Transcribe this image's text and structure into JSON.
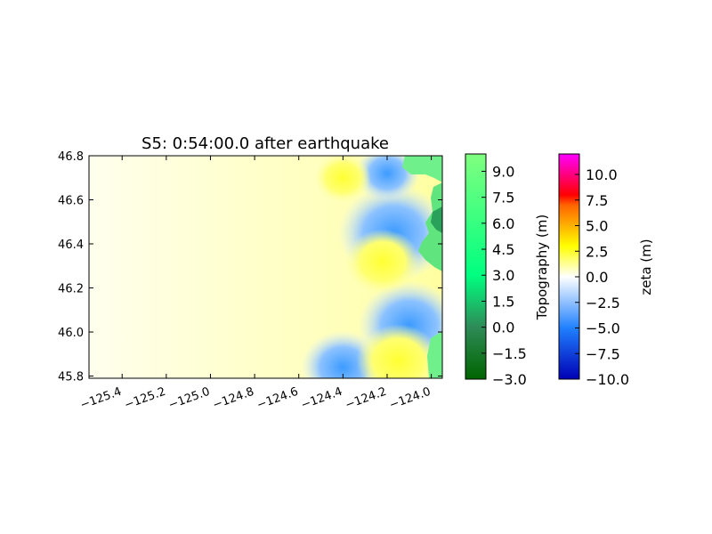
{
  "chart_data": {
    "type": "heatmap",
    "title": "S5: 0:54:00.0 after earthquake",
    "xlabel": "",
    "ylabel": "",
    "xlim": [
      -125.55,
      -123.95
    ],
    "ylim": [
      45.79,
      46.8
    ],
    "x_ticks": [
      -125.4,
      -125.2,
      -125.0,
      -124.8,
      -124.6,
      -124.4,
      -124.2,
      -124.0
    ],
    "x_tick_labels": [
      "−125.4",
      "−125.2",
      "−125.0",
      "−124.8",
      "−124.6",
      "−124.4",
      "−124.2",
      "−124.0"
    ],
    "y_ticks": [
      45.8,
      46.0,
      46.2,
      46.4,
      46.6,
      46.8
    ],
    "y_tick_labels": [
      "45.8",
      "46.0",
      "46.2",
      "46.4",
      "46.6",
      "46.8"
    ],
    "grid": false,
    "surface_features": [
      {
        "kind": "negative",
        "lon": -124.17,
        "lat": 46.45,
        "value": -4.5
      },
      {
        "kind": "negative",
        "lon": -124.1,
        "lat": 46.03,
        "value": -4.0
      },
      {
        "kind": "negative",
        "lon": -124.4,
        "lat": 45.84,
        "value": -3.0
      },
      {
        "kind": "negative",
        "lon": -124.2,
        "lat": 46.72,
        "value": -2.0
      },
      {
        "kind": "positive",
        "lon": -124.15,
        "lat": 45.87,
        "value": 3.0
      },
      {
        "kind": "positive",
        "lon": -124.22,
        "lat": 46.32,
        "value": 2.5
      },
      {
        "kind": "positive",
        "lon": -124.4,
        "lat": 46.7,
        "value": 1.5
      }
    ],
    "colorbars": [
      {
        "label": "Topography (m)",
        "ticks": [
          -3.0,
          -1.5,
          0.0,
          1.5,
          3.0,
          4.5,
          6.0,
          7.5,
          9.0
        ],
        "tick_labels": [
          "−3.0",
          "−1.5",
          "0.0",
          "1.5",
          "3.0",
          "4.5",
          "6.0",
          "7.5",
          "9.0"
        ],
        "range": [
          -3.0,
          10.0
        ],
        "stops": [
          {
            "v": -3.0,
            "color": "#006400"
          },
          {
            "v": 0.0,
            "color": "#2e8b57"
          },
          {
            "v": 3.0,
            "color": "#00ff80"
          },
          {
            "v": 10.0,
            "color": "#80ff80"
          }
        ]
      },
      {
        "label": "zeta (m)",
        "ticks": [
          -10.0,
          -7.5,
          -5.0,
          -2.5,
          0.0,
          2.5,
          5.0,
          7.5,
          10.0
        ],
        "tick_labels": [
          "−10.0",
          "−7.5",
          "−5.0",
          "−2.5",
          "0.0",
          "2.5",
          "5.0",
          "7.5",
          "10.0"
        ],
        "range": [
          -10.0,
          12.0
        ],
        "stops": [
          {
            "v": -10.0,
            "color": "#0000b4"
          },
          {
            "v": -5.0,
            "color": "#2080ff"
          },
          {
            "v": 0.0,
            "color": "#ffffff"
          },
          {
            "v": 3.0,
            "color": "#ffff00"
          },
          {
            "v": 7.0,
            "color": "#ff6400"
          },
          {
            "v": 8.0,
            "color": "#ff0000"
          },
          {
            "v": 12.0,
            "color": "#ff00ff"
          }
        ]
      }
    ]
  }
}
